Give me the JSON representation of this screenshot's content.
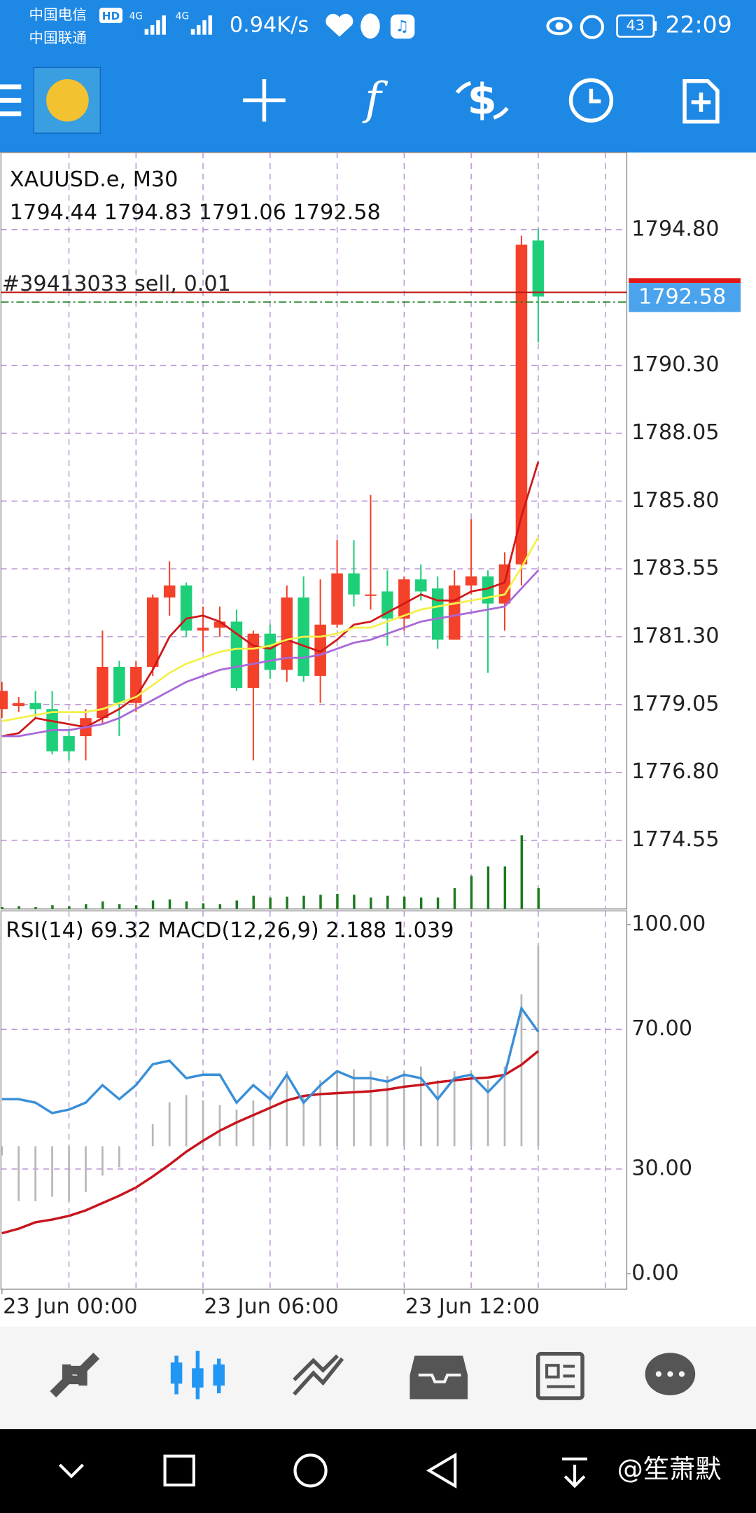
{
  "status_bar": {
    "carrier1": "中国电信",
    "carrier2": "中国联通",
    "hd": "HD",
    "net1": "4G",
    "net2": "4G",
    "speed": "0.94K/s",
    "battery": "43",
    "time": "22:09"
  },
  "chart_data": {
    "type": "candlestick",
    "symbol": "XAUUSD.e, M30",
    "ohlc_text": "1794.44 1794.83 1791.06 1792.58",
    "order_label": "#39413033 sell, 0.01",
    "current_price": 1792.58,
    "current_price_label": "1792.58",
    "order_price": 1792.72,
    "ask_price": 1792.4,
    "up_color": "#f4412a",
    "down_color": "#1ecf7a",
    "ylim": [
      1772.27,
      1797.36
    ],
    "yticks": [
      {
        "value": 1794.8,
        "label": "1794.80"
      },
      {
        "value": 1790.3,
        "label": "1790.30"
      },
      {
        "value": 1788.05,
        "label": "1788.05"
      },
      {
        "value": 1785.8,
        "label": "1785.80"
      },
      {
        "value": 1783.55,
        "label": "1783.55"
      },
      {
        "value": 1781.3,
        "label": "1781.30"
      },
      {
        "value": 1779.05,
        "label": "1779.05"
      },
      {
        "value": 1776.8,
        "label": "1776.80"
      },
      {
        "value": 1774.55,
        "label": "1774.55"
      }
    ],
    "xticks": [
      {
        "value": 0,
        "label": "23 Jun 00:00"
      },
      {
        "value": 12,
        "label": "23 Jun 06:00"
      },
      {
        "value": 24,
        "label": "23 Jun 12:00"
      }
    ],
    "open": [
      1778.9,
      1779.0,
      1779.1,
      1778.9,
      1778.0,
      1778.0,
      1778.6,
      1780.3,
      1779.1,
      1780.3,
      1782.6,
      1783.0,
      1781.5,
      1781.6,
      1781.8,
      1779.6,
      1781.4,
      1780.2,
      1782.6,
      1780.0,
      1781.7,
      1783.4,
      1782.7,
      1782.8,
      1781.9,
      1783.2,
      1782.9,
      1781.2,
      1783.0,
      1783.3,
      1782.4,
      1783.7,
      1794.44
    ],
    "high": [
      1779.8,
      1779.3,
      1779.5,
      1779.5,
      1778.2,
      1778.9,
      1781.5,
      1780.5,
      1780.5,
      1782.7,
      1783.8,
      1783.1,
      1782.3,
      1782.3,
      1782.2,
      1781.5,
      1781.7,
      1783.0,
      1783.3,
      1783.2,
      1784.5,
      1784.5,
      1786.0,
      1783.5,
      1783.3,
      1783.7,
      1783.3,
      1783.5,
      1785.2,
      1783.5,
      1784.1,
      1794.6,
      1794.83
    ],
    "low": [
      1778.6,
      1778.8,
      1778.6,
      1777.4,
      1777.2,
      1777.2,
      1778.4,
      1778.0,
      1778.8,
      1780.0,
      1782.0,
      1781.3,
      1780.8,
      1781.3,
      1779.5,
      1777.2,
      1779.9,
      1779.8,
      1779.8,
      1779.1,
      1781.6,
      1782.3,
      1782.2,
      1781.0,
      1781.5,
      1782.5,
      1780.9,
      1781.2,
      1782.7,
      1780.1,
      1781.5,
      1783.0,
      1791.06
    ],
    "close": [
      1779.5,
      1779.1,
      1778.9,
      1777.5,
      1777.5,
      1778.6,
      1780.3,
      1779.1,
      1780.3,
      1782.6,
      1783.0,
      1781.5,
      1781.6,
      1781.8,
      1779.6,
      1781.4,
      1780.2,
      1782.6,
      1780.0,
      1781.7,
      1783.4,
      1782.7,
      1782.7,
      1781.9,
      1783.2,
      1782.8,
      1781.2,
      1783.0,
      1783.3,
      1782.4,
      1783.7,
      1794.3,
      1792.58
    ],
    "ma": [
      {
        "color": "#d01818",
        "values": [
          1778.0,
          1778.1,
          1778.6,
          1778.5,
          1778.4,
          1778.3,
          1778.6,
          1778.9,
          1779.3,
          1780.2,
          1781.3,
          1781.9,
          1782.0,
          1781.8,
          1781.4,
          1781.0,
          1780.9,
          1781.2,
          1781.0,
          1780.8,
          1781.2,
          1781.7,
          1781.8,
          1782.1,
          1782.4,
          1782.7,
          1782.5,
          1782.5,
          1782.8,
          1782.9,
          1783.1,
          1785.3,
          1787.1
        ]
      },
      {
        "color": "#f5f04a",
        "values": [
          1778.5,
          1778.6,
          1778.7,
          1778.8,
          1778.8,
          1778.8,
          1778.9,
          1779.1,
          1779.3,
          1779.7,
          1780.1,
          1780.4,
          1780.6,
          1780.8,
          1780.9,
          1780.9,
          1781.0,
          1781.2,
          1781.3,
          1781.3,
          1781.4,
          1781.6,
          1781.6,
          1781.8,
          1782.0,
          1782.2,
          1782.3,
          1782.4,
          1782.5,
          1782.6,
          1782.7,
          1783.6,
          1784.6
        ]
      },
      {
        "color": "#a868d8",
        "values": [
          1778.0,
          1778.0,
          1778.1,
          1778.2,
          1778.2,
          1778.3,
          1778.4,
          1778.6,
          1778.9,
          1779.2,
          1779.5,
          1779.8,
          1780.0,
          1780.2,
          1780.3,
          1780.4,
          1780.5,
          1780.6,
          1780.6,
          1780.7,
          1780.9,
          1781.1,
          1781.2,
          1781.4,
          1781.6,
          1781.8,
          1781.9,
          1782.0,
          1782.1,
          1782.2,
          1782.3,
          1782.9,
          1783.5
        ]
      }
    ],
    "volume": {
      "color": "#1b7a1b",
      "ylim": [
        0,
        800
      ],
      "values": [
        2,
        3,
        2,
        4,
        3,
        5,
        8,
        5,
        4,
        9,
        10,
        8,
        6,
        5,
        9,
        14,
        12,
        13,
        14,
        15,
        16,
        15,
        12,
        14,
        13,
        12,
        12,
        22,
        35,
        45,
        45,
        78,
        22
      ]
    },
    "indicators": {
      "label": "RSI(14) 69.32 MACD(12,26,9) 2.188 1.039",
      "ylim": [
        -4.4,
        103.9
      ],
      "yticks": [
        {
          "value": 100,
          "label": "100.00"
        },
        {
          "value": 70,
          "label": "70.00"
        },
        {
          "value": 30,
          "label": "30.00"
        },
        {
          "value": 0,
          "label": "0.00"
        }
      ],
      "rsi": {
        "color": "#3a8fd8",
        "values": [
          50,
          50,
          49,
          46,
          47,
          49,
          54,
          50,
          54,
          60,
          61,
          56,
          57,
          57,
          49,
          54,
          50,
          57,
          49,
          54,
          58,
          56,
          56,
          55,
          57,
          56,
          50,
          56,
          57,
          52,
          57,
          76,
          69.32
        ]
      },
      "macd_ylim": [
        -1.56,
        2.57
      ],
      "macd": {
        "color": "#b8b8b8",
        "values": [
          -0.1,
          -0.6,
          -0.6,
          -0.55,
          -0.6,
          -0.5,
          -0.32,
          -0.23,
          0.0,
          0.24,
          0.48,
          0.56,
          0.5,
          0.45,
          0.4,
          0.5,
          0.56,
          0.82,
          0.56,
          0.72,
          0.82,
          0.84,
          0.82,
          0.77,
          0.82,
          0.87,
          0.72,
          0.82,
          0.82,
          0.72,
          0.87,
          1.66,
          2.188
        ]
      },
      "signal": {
        "color": "#c8141e",
        "values": [
          -0.95,
          -0.9,
          -0.83,
          -0.8,
          -0.76,
          -0.7,
          -0.62,
          -0.54,
          -0.45,
          -0.33,
          -0.2,
          -0.06,
          0.06,
          0.17,
          0.26,
          0.34,
          0.42,
          0.5,
          0.55,
          0.57,
          0.58,
          0.59,
          0.6,
          0.62,
          0.65,
          0.67,
          0.7,
          0.72,
          0.74,
          0.75,
          0.78,
          0.89,
          1.039
        ]
      }
    }
  },
  "watermark": "@笙萧默"
}
